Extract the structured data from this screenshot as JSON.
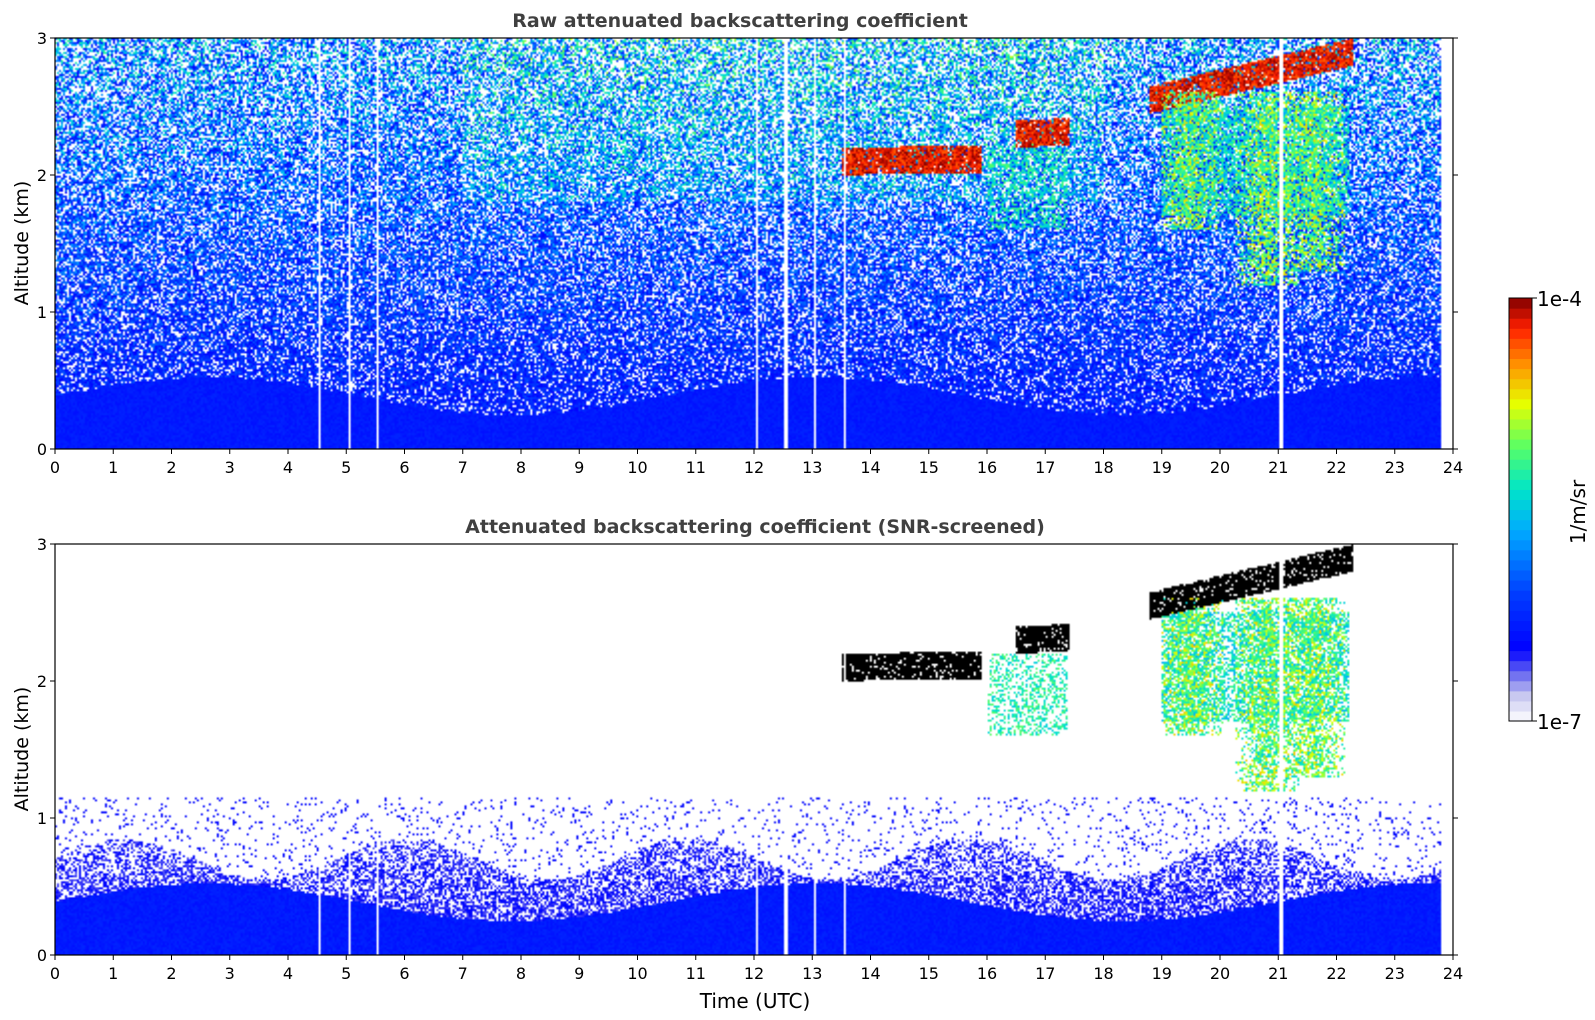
{
  "colors": {
    "background": "#ffffff",
    "title": "#404040",
    "colormap": [
      "#ffffff",
      "#c8c8f0",
      "#7878f0",
      "#0000ff",
      "#0050ff",
      "#00b4ff",
      "#00e6c8",
      "#64ff64",
      "#e6ff00",
      "#ff9600",
      "#ff1e00",
      "#800000"
    ],
    "screened_cloud_top": "#000000"
  },
  "chart_data": [
    {
      "type": "heatmap",
      "title": "Raw attenuated backscattering coefficient",
      "xlabel": "",
      "ylabel": "Altitude (km)",
      "xlim": [
        0,
        24
      ],
      "ylim": [
        0,
        3
      ],
      "xticks": [
        "0",
        "1",
        "2",
        "3",
        "4",
        "5",
        "6",
        "7",
        "8",
        "9",
        "10",
        "11",
        "12",
        "13",
        "14",
        "15",
        "16",
        "17",
        "18",
        "19",
        "20",
        "21",
        "22",
        "23",
        "24"
      ],
      "yticks": [
        "0",
        "1",
        "2",
        "3"
      ],
      "data_end_time": 23.8,
      "cloud_layers": [
        {
          "t_start": 13.5,
          "t_end": 15.9,
          "base_km": 2.0,
          "top_km": 2.25
        },
        {
          "t_start": 16.5,
          "t_end": 17.4,
          "base_km": 2.2,
          "top_km": 2.45
        },
        {
          "t_start": 18.8,
          "t_end": 22.3,
          "base_km": 2.45,
          "top_km": 3.0
        }
      ],
      "virga_streaks": [
        {
          "t": 19.5,
          "bottom_km": 1.6
        },
        {
          "t": 20.8,
          "bottom_km": 1.2
        },
        {
          "t": 21.6,
          "bottom_km": 1.3
        }
      ]
    },
    {
      "type": "heatmap",
      "title": "Attenuated backscattering coefficient (SNR-screened)",
      "xlabel": "Time (UTC)",
      "ylabel": "Altitude (km)",
      "xlim": [
        0,
        24
      ],
      "ylim": [
        0,
        3
      ],
      "xticks": [
        "0",
        "1",
        "2",
        "3",
        "4",
        "5",
        "6",
        "7",
        "8",
        "9",
        "10",
        "11",
        "12",
        "13",
        "14",
        "15",
        "16",
        "17",
        "18",
        "19",
        "20",
        "21",
        "22",
        "23",
        "24"
      ],
      "yticks": [
        "0",
        "1",
        "2",
        "3"
      ],
      "data_end_time": 23.8,
      "boundary_layer_top_km": 0.7
    }
  ],
  "colorbar": {
    "label": "1/m/sr",
    "max_label": "1e-4",
    "min_label": "1e-7",
    "range": [
      1e-07,
      0.0001
    ],
    "scale": "log"
  }
}
